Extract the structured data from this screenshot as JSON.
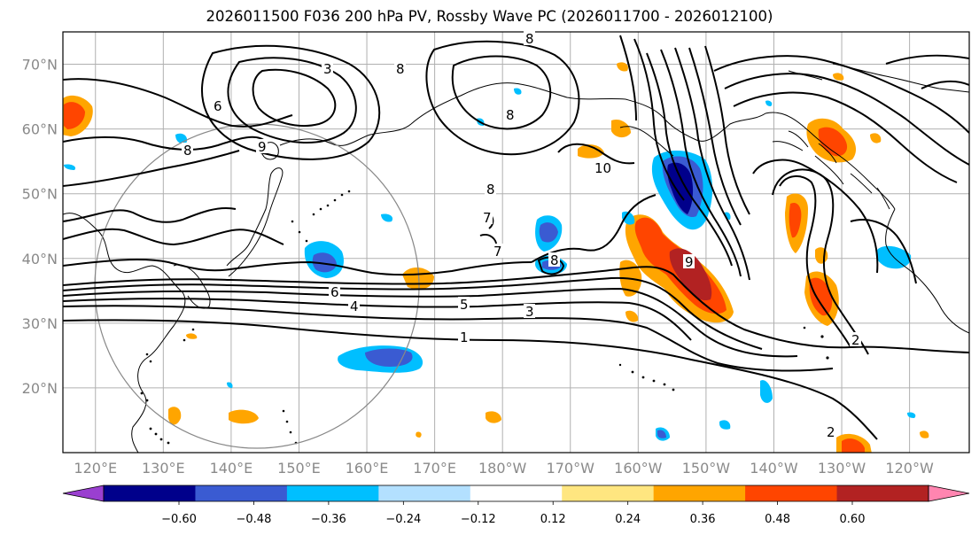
{
  "title": "2026011500 F036 200 hPa PV, Rossby Wave PC (2026011700 - 2026012100)",
  "map": {
    "lat_labels": [
      "70°N",
      "60°N",
      "50°N",
      "40°N",
      "30°N",
      "20°N"
    ],
    "lat_values": [
      70,
      60,
      50,
      40,
      30,
      20
    ],
    "lon_labels": [
      "120°E",
      "130°E",
      "140°E",
      "150°E",
      "160°E",
      "170°E",
      "180°W",
      "170°W",
      "160°W",
      "150°W",
      "140°W",
      "130°W",
      "120°W"
    ],
    "lon_values": [
      120,
      130,
      140,
      150,
      160,
      170,
      180,
      190,
      200,
      210,
      220,
      230,
      240
    ],
    "contour_labels": [
      "1",
      "2",
      "2",
      "3",
      "3",
      "4",
      "5",
      "6",
      "6",
      "7",
      "7",
      "8",
      "8",
      "8",
      "8",
      "8",
      "8",
      "9",
      "9",
      "10"
    ]
  },
  "colorbar": {
    "tick_labels": [
      "−0.60",
      "−0.48",
      "−0.36",
      "−0.24",
      "−0.12",
      "0.12",
      "0.24",
      "0.36",
      "0.48",
      "0.60"
    ],
    "colors": [
      "#9a3fd0",
      "#00008b",
      "#3a5bd2",
      "#00bfff",
      "#b3e0ff",
      "#ffffff",
      "#ffe680",
      "#ffa500",
      "#ff4500",
      "#b22222",
      "#ff85b0"
    ]
  }
}
